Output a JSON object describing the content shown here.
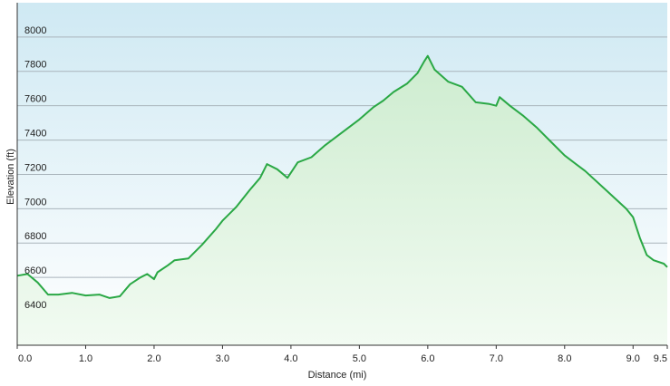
{
  "chart_data": {
    "type": "area",
    "x_label": "Distance  (mi)",
    "y_label": "Elevation (ft)",
    "x": [
      0,
      0.15,
      0.3,
      0.45,
      0.6,
      0.8,
      1.0,
      1.2,
      1.35,
      1.5,
      1.65,
      1.8,
      1.9,
      2.0,
      2.05,
      2.2,
      2.3,
      2.5,
      2.7,
      2.9,
      3.0,
      3.2,
      3.4,
      3.55,
      3.65,
      3.8,
      3.95,
      4.1,
      4.3,
      4.5,
      4.8,
      5.0,
      5.2,
      5.35,
      5.5,
      5.7,
      5.85,
      5.95,
      6.0,
      6.1,
      6.3,
      6.5,
      6.7,
      6.9,
      7.0,
      7.05,
      7.2,
      7.4,
      7.6,
      7.8,
      8.0,
      8.3,
      8.6,
      8.9,
      9.0,
      9.1,
      9.2,
      9.3,
      9.45,
      9.5
    ],
    "series": [
      {
        "name": "Elevation",
        "color": "#2aa845",
        "values": [
          6610,
          6620,
          6570,
          6500,
          6500,
          6510,
          6495,
          6500,
          6480,
          6490,
          6560,
          6600,
          6620,
          6590,
          6630,
          6670,
          6700,
          6710,
          6790,
          6880,
          6930,
          7010,
          7110,
          7180,
          7260,
          7230,
          7180,
          7270,
          7300,
          7370,
          7460,
          7520,
          7590,
          7630,
          7680,
          7730,
          7790,
          7860,
          7890,
          7810,
          7740,
          7710,
          7620,
          7610,
          7600,
          7650,
          7600,
          7540,
          7470,
          7390,
          7310,
          7220,
          7110,
          7000,
          6950,
          6830,
          6730,
          6700,
          6680,
          6660
        ]
      }
    ],
    "xlim": [
      0,
      9.5
    ],
    "ylim": [
      6205,
      8200
    ],
    "xticks": [
      {
        "value": 0,
        "label": "0.0"
      },
      {
        "value": 1,
        "label": "1.0"
      },
      {
        "value": 2,
        "label": "2.0"
      },
      {
        "value": 3,
        "label": "3.0"
      },
      {
        "value": 4,
        "label": "4.0"
      },
      {
        "value": 5,
        "label": "5.0"
      },
      {
        "value": 6,
        "label": "6.0"
      },
      {
        "value": 7,
        "label": "7.0"
      },
      {
        "value": 8,
        "label": "8.0"
      },
      {
        "value": 9,
        "label": "9.0"
      },
      9.5
    ],
    "yticks": [
      6400,
      6600,
      6800,
      7000,
      7200,
      7400,
      7600,
      7800,
      8000
    ],
    "grid": true
  }
}
